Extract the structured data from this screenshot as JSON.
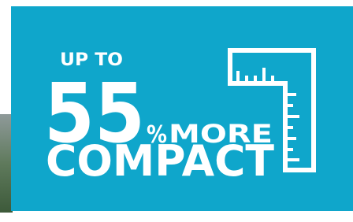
{
  "badge": {
    "lead": "UP TO",
    "number": "55",
    "unit": "%",
    "more": "MORE",
    "word": "COMPACT"
  }
}
